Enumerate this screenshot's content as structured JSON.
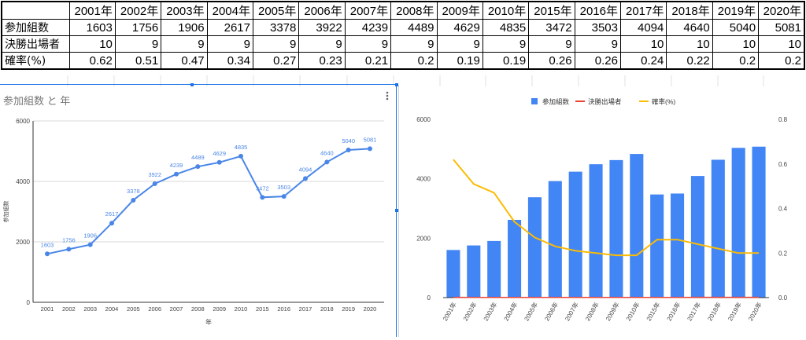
{
  "table": {
    "years": [
      "2001年",
      "2002年",
      "2003年",
      "2004年",
      "2005年",
      "2006年",
      "2007年",
      "2008年",
      "2009年",
      "2010年",
      "2015年",
      "2016年",
      "2017年",
      "2018年",
      "2019年",
      "2020年"
    ],
    "rows": [
      {
        "label": "参加組数",
        "values": [
          "1603",
          "1756",
          "1906",
          "2617",
          "3378",
          "3922",
          "4239",
          "4489",
          "4629",
          "4835",
          "3472",
          "3503",
          "4094",
          "4640",
          "5040",
          "5081"
        ]
      },
      {
        "label": "決勝出場者",
        "values": [
          "10",
          "9",
          "9",
          "9",
          "9",
          "9",
          "9",
          "9",
          "9",
          "9",
          "9",
          "9",
          "10",
          "10",
          "10",
          "10"
        ]
      },
      {
        "label": "確率(%)",
        "values": [
          "0.62",
          "0.51",
          "0.47",
          "0.34",
          "0.27",
          "0.23",
          "0.21",
          "0.2",
          "0.19",
          "0.19",
          "0.26",
          "0.26",
          "0.24",
          "0.22",
          "0.2",
          "0.2"
        ]
      }
    ]
  },
  "chart_data": [
    {
      "type": "line",
      "title": "参加組数 と 年",
      "xlabel": "年",
      "ylabel": "参加組数",
      "categories": [
        "2001",
        "2002",
        "2003",
        "2004",
        "2005",
        "2006",
        "2007",
        "2008",
        "2009",
        "2010",
        "2015",
        "2016",
        "2017",
        "2018",
        "2019",
        "2020"
      ],
      "values": [
        1603,
        1756,
        1906,
        2617,
        3378,
        3922,
        4239,
        4489,
        4629,
        4835,
        3472,
        3503,
        4094,
        4640,
        5040,
        5081
      ],
      "ylim": [
        0,
        6000
      ],
      "yticks": [
        "0",
        "2000",
        "4000",
        "6000"
      ],
      "grid": true,
      "data_labels": true,
      "menu_icon": "more-vertical-icon",
      "color": "#4a86e8"
    },
    {
      "type": "bar",
      "categories": [
        "2001年",
        "2002年",
        "2003年",
        "2004年",
        "2005年",
        "2006年",
        "2007年",
        "2008年",
        "2009年",
        "2010年",
        "2015年",
        "2016年",
        "2017年",
        "2018年",
        "2019年",
        "2020年"
      ],
      "series": [
        {
          "name": "参加組数",
          "type": "bar",
          "axis": "left",
          "color": "#4285f4",
          "values": [
            1603,
            1756,
            1906,
            2617,
            3378,
            3922,
            4239,
            4489,
            4629,
            4835,
            3472,
            3503,
            4094,
            4640,
            5040,
            5081
          ]
        },
        {
          "name": "決勝出場者",
          "type": "line",
          "axis": "left",
          "color": "#ea4335",
          "values": [
            10,
            9,
            9,
            9,
            9,
            9,
            9,
            9,
            9,
            9,
            9,
            9,
            10,
            10,
            10,
            10
          ]
        },
        {
          "name": "確率(%)",
          "type": "line",
          "axis": "right",
          "color": "#fbbc04",
          "values": [
            0.62,
            0.51,
            0.47,
            0.34,
            0.27,
            0.23,
            0.21,
            0.2,
            0.19,
            0.19,
            0.26,
            0.26,
            0.24,
            0.22,
            0.2,
            0.2
          ]
        }
      ],
      "ylim": [
        0,
        6000
      ],
      "yticks": [
        "0",
        "2000",
        "4000",
        "6000"
      ],
      "y2lim": [
        0,
        0.8
      ],
      "y2ticks": [
        "0.0",
        "0.2",
        "0.4",
        "0.6",
        "0.8"
      ],
      "legend": "top",
      "grid": false
    }
  ]
}
